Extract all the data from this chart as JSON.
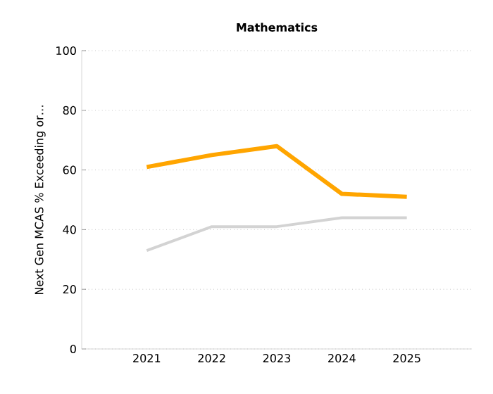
{
  "chart_data": {
    "type": "line",
    "title": "Mathematics",
    "ylabel": "Next Gen MCAS % Exceeding or…",
    "categories": [
      "2021",
      "2022",
      "2023",
      "2024",
      "2025"
    ],
    "series": [
      {
        "color": "#ffa500",
        "values": [
          61,
          65,
          68,
          52,
          51
        ]
      },
      {
        "color": "#d3d3d3",
        "values": [
          33,
          41,
          41,
          44,
          44
        ]
      }
    ],
    "ylim": [
      0,
      100
    ],
    "yticks": [
      0,
      20,
      40,
      60,
      80,
      100
    ],
    "grid": "y",
    "marker": "none",
    "line_style": "solid"
  }
}
